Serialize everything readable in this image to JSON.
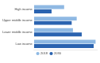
{
  "chart_data": {
    "type": "bar",
    "orientation": "horizontal",
    "categories": [
      "High income",
      "Upper middle income",
      "Lower middle income",
      "Low income"
    ],
    "series": [
      {
        "name": "2018",
        "color": "#8fb9e3",
        "values": [
          48,
          68,
          62,
          98
        ]
      },
      {
        "name": "2030",
        "color": "#2a63b0",
        "values": [
          28,
          60,
          76,
          95
        ]
      }
    ],
    "xlim": [
      0,
      100
    ],
    "grid": false,
    "legend": "bottom",
    "tick_labels": "y"
  }
}
